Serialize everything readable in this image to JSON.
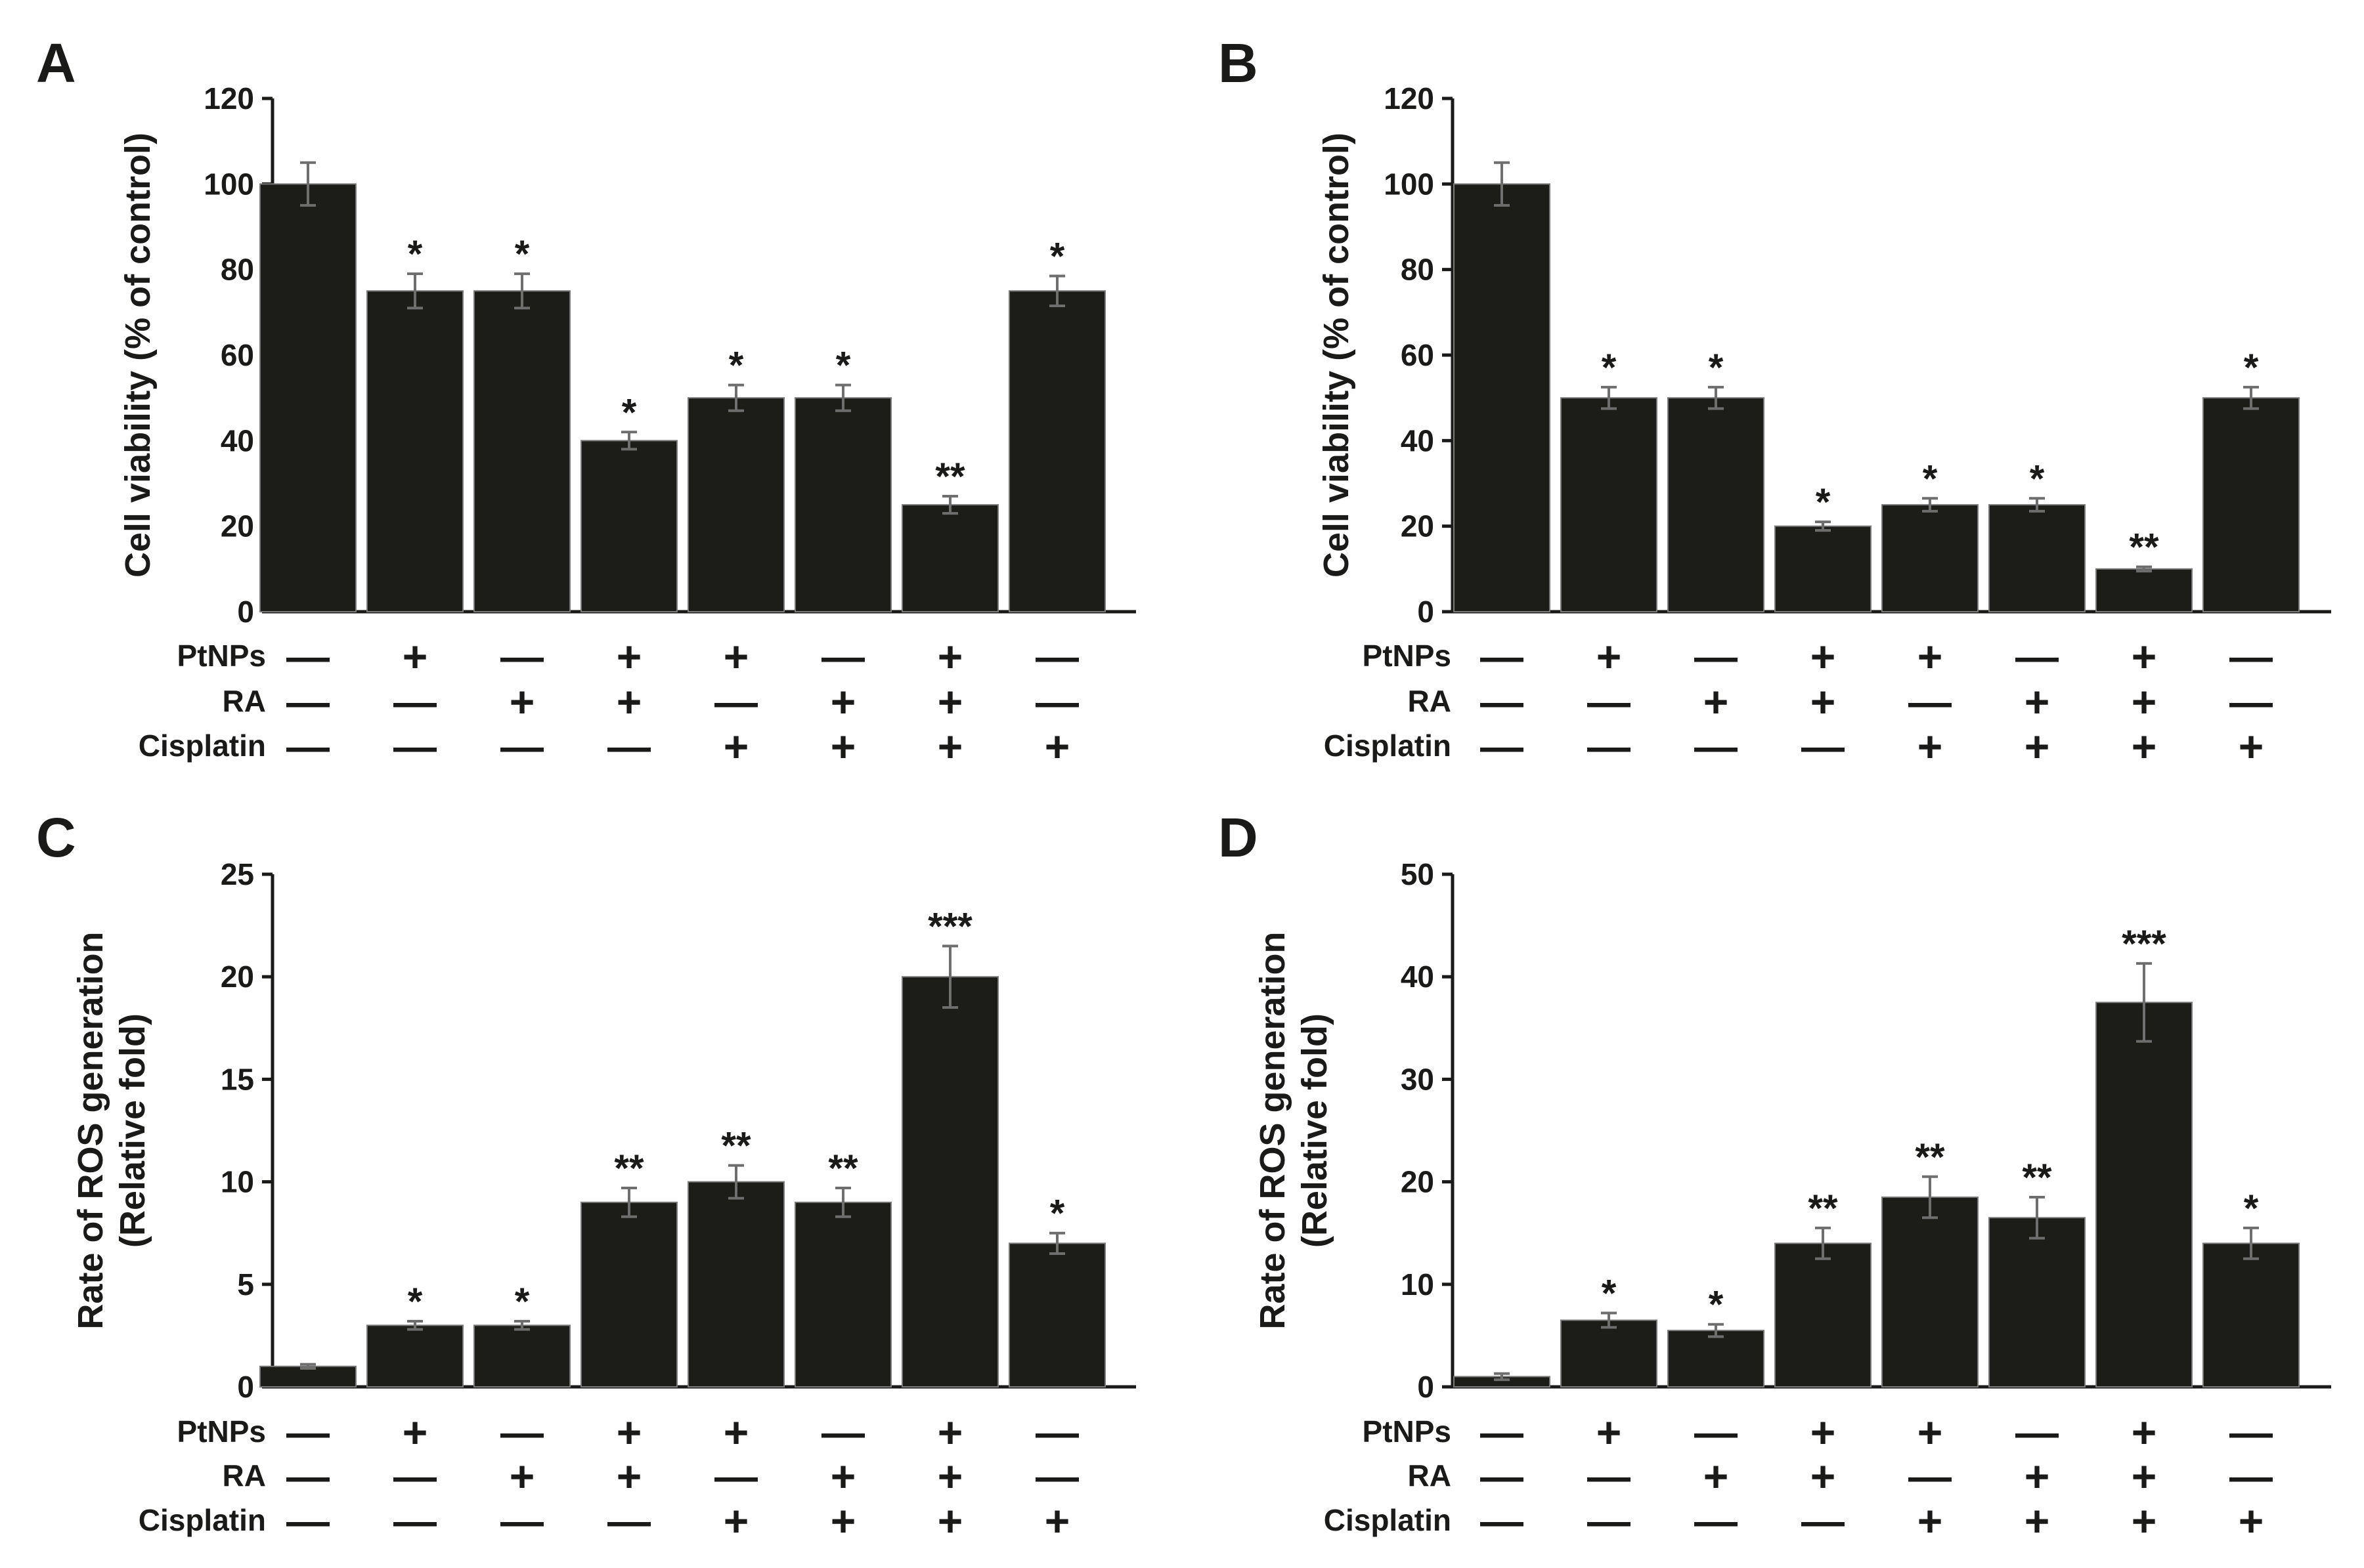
{
  "figure": {
    "background": "#ffffff",
    "bar_color": "#1c1c19",
    "text_color": "#1a1a18",
    "error_bar_color": "#6e6e6e",
    "plus_symbol": "+",
    "minus_symbol": "—",
    "treatments": [
      {
        "name": "PtNPs",
        "values": [
          "—",
          "+",
          "—",
          "+",
          "+",
          "—",
          "+",
          "—"
        ]
      },
      {
        "name": "RA",
        "values": [
          "—",
          "—",
          "+",
          "+",
          "—",
          "+",
          "+",
          "—"
        ]
      },
      {
        "name": "Cisplatin",
        "values": [
          "—",
          "—",
          "—",
          "—",
          "+",
          "+",
          "+",
          "+"
        ]
      }
    ]
  },
  "chart_data": [
    {
      "panel": "A",
      "type": "bar",
      "ylabel_lines": [
        "Cell viability (% of control)"
      ],
      "ylim": [
        0,
        120
      ],
      "yticks": [
        0,
        20,
        40,
        60,
        80,
        100,
        120
      ],
      "values": [
        100,
        75,
        75,
        40,
        50,
        50,
        25,
        75
      ],
      "errors": [
        5,
        4,
        4,
        2,
        3,
        3,
        2,
        3.5
      ],
      "significance": [
        "",
        "*",
        "*",
        "*",
        "*",
        "*",
        "**",
        "*"
      ]
    },
    {
      "panel": "B",
      "type": "bar",
      "ylabel_lines": [
        "Cell viability (% of control)"
      ],
      "ylim": [
        0,
        120
      ],
      "yticks": [
        0,
        20,
        40,
        60,
        80,
        100,
        120
      ],
      "values": [
        100,
        50,
        50,
        20,
        25,
        25,
        10,
        50
      ],
      "errors": [
        5,
        2.5,
        2.5,
        1,
        1.5,
        1.5,
        0.5,
        2.5
      ],
      "significance": [
        "",
        "*",
        "*",
        "*",
        "*",
        "*",
        "**",
        "*"
      ]
    },
    {
      "panel": "C",
      "type": "bar",
      "ylabel_lines": [
        "Rate of ROS generation",
        "(Relative fold)"
      ],
      "ylim": [
        0,
        25
      ],
      "yticks": [
        0,
        5,
        10,
        15,
        20,
        25
      ],
      "values": [
        1,
        3,
        3,
        9,
        10,
        9,
        20,
        7
      ],
      "errors": [
        0.1,
        0.2,
        0.2,
        0.7,
        0.8,
        0.7,
        1.5,
        0.5
      ],
      "significance": [
        "",
        "*",
        "*",
        "**",
        "**",
        "**",
        "***",
        "*"
      ]
    },
    {
      "panel": "D",
      "type": "bar",
      "ylabel_lines": [
        "Rate of ROS generation",
        "(Relative fold)"
      ],
      "ylim": [
        0,
        50
      ],
      "yticks": [
        0,
        10,
        20,
        30,
        40,
        50
      ],
      "values": [
        1,
        6.5,
        5.5,
        14,
        18.5,
        16.5,
        37.5,
        14
      ],
      "errors": [
        0.3,
        0.7,
        0.6,
        1.5,
        2,
        2,
        3.8,
        1.5
      ],
      "significance": [
        "",
        "*",
        "*",
        "**",
        "**",
        "**",
        "***",
        "*"
      ]
    }
  ]
}
